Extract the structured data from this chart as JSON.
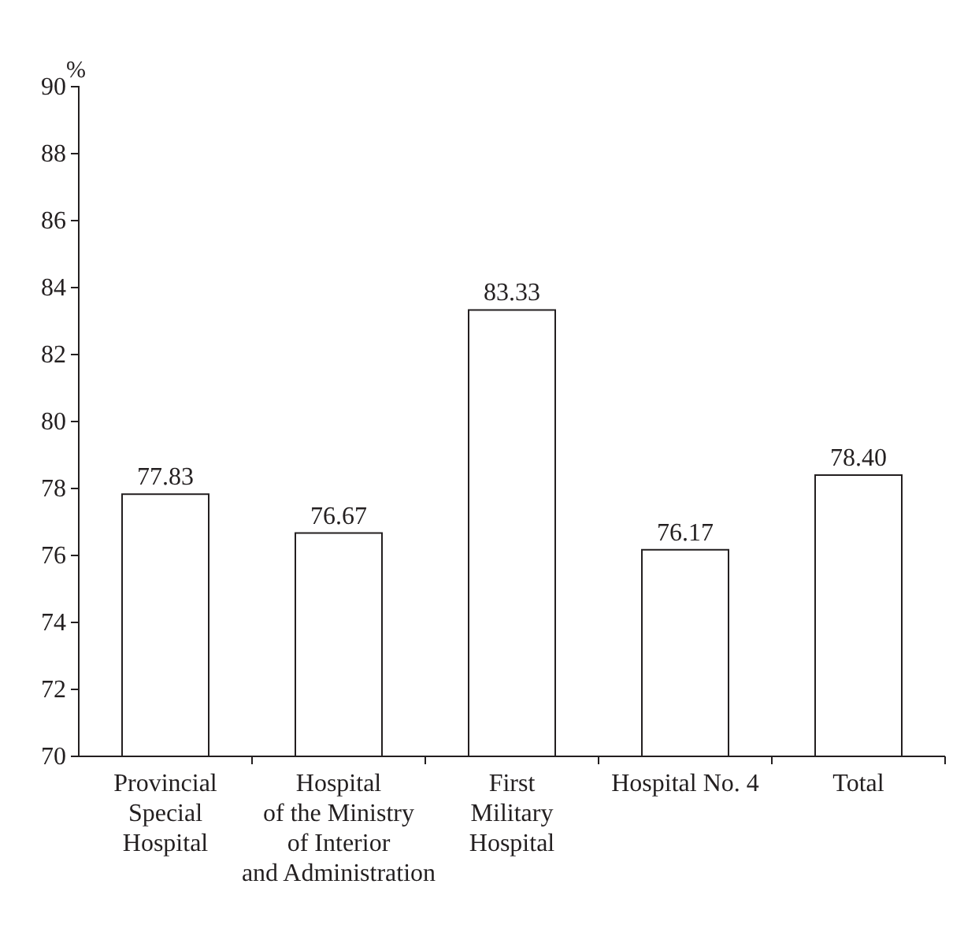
{
  "chart_data": {
    "type": "bar",
    "ylabel": "%",
    "categories": [
      "Provincial\nSpecial\nHospital",
      "Hospital\nof the Ministry\nof Interior\nand Administration",
      "First\nMilitary\nHospital",
      "Hospital No. 4",
      "Total"
    ],
    "values": [
      77.83,
      76.67,
      83.33,
      76.17,
      78.4
    ],
    "value_labels": [
      "77.83",
      "76.67",
      "83.33",
      "76.17",
      "78.40"
    ],
    "color": "#ffffff",
    "ylim": [
      70,
      90
    ],
    "yticks": [
      70,
      72,
      74,
      76,
      78,
      80,
      82,
      84,
      86,
      88,
      90
    ]
  }
}
